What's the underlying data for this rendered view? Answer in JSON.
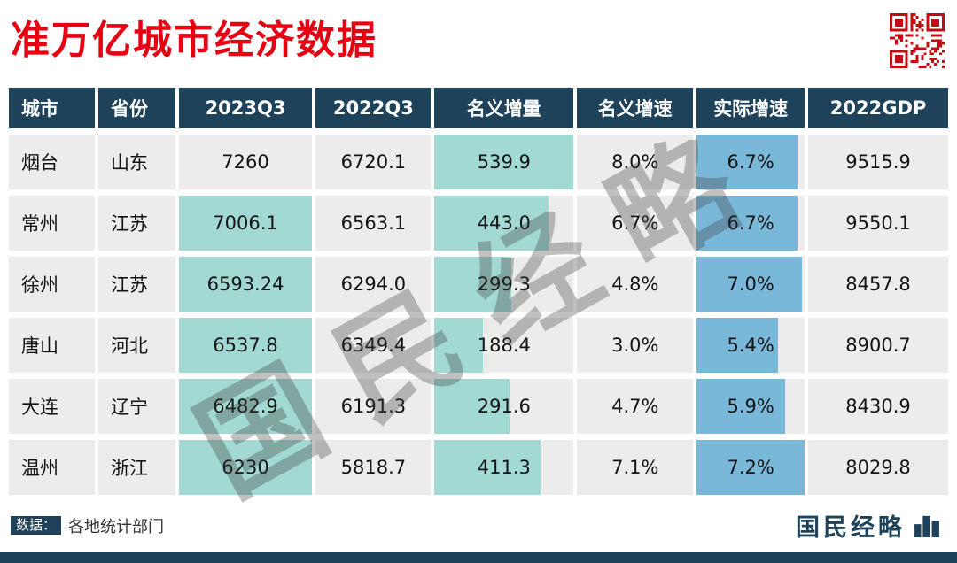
{
  "title": "准万亿城市经济数据",
  "watermark": "国民经略",
  "colors": {
    "red": "#e60012",
    "navy": "#1e4259",
    "teal": "#a2d9d3",
    "blue": "#7ab8da",
    "row_bg": "#ececec"
  },
  "table": {
    "columns": [
      "城市",
      "省份",
      "2023Q3",
      "2022Q3",
      "名义增量",
      "名义增速",
      "实际增速",
      "2022GDP"
    ],
    "rows": [
      {
        "city": "烟台",
        "province": "山东",
        "q3_2023": "7260",
        "q3_2023_highlight": false,
        "q3_2022": "6720.1",
        "increment": "539.9",
        "nominal_growth": "8.0%",
        "real_growth": "6.7%",
        "gdp_2022": "9515.9"
      },
      {
        "city": "常州",
        "province": "江苏",
        "q3_2023": "7006.1",
        "q3_2023_highlight": true,
        "q3_2022": "6563.1",
        "increment": "443.0",
        "nominal_growth": "6.7%",
        "real_growth": "6.7%",
        "gdp_2022": "9550.1"
      },
      {
        "city": "徐州",
        "province": "江苏",
        "q3_2023": "6593.24",
        "q3_2023_highlight": true,
        "q3_2022": "6294.0",
        "increment": "299.3",
        "nominal_growth": "4.8%",
        "real_growth": "7.0%",
        "gdp_2022": "8457.8"
      },
      {
        "city": "唐山",
        "province": "河北",
        "q3_2023": "6537.8",
        "q3_2023_highlight": true,
        "q3_2022": "6349.4",
        "increment": "188.4",
        "nominal_growth": "3.0%",
        "real_growth": "5.4%",
        "gdp_2022": "8900.7"
      },
      {
        "city": "大连",
        "province": "辽宁",
        "q3_2023": "6482.9",
        "q3_2023_highlight": true,
        "q3_2022": "6191.3",
        "increment": "291.6",
        "nominal_growth": "4.7%",
        "real_growth": "5.9%",
        "gdp_2022": "8430.9"
      },
      {
        "city": "温州",
        "province": "浙江",
        "q3_2023": "6230",
        "q3_2023_highlight": true,
        "q3_2022": "5818.7",
        "increment": "411.3",
        "nominal_growth": "7.1%",
        "real_growth": "7.2%",
        "gdp_2022": "8029.8"
      }
    ]
  },
  "footer": {
    "source_label": "数据：",
    "source": "各地统计部门",
    "brand": "国民经略"
  },
  "chart_data": {
    "type": "table",
    "title": "准万亿城市经济数据",
    "columns": [
      "城市",
      "省份",
      "2023Q3",
      "2022Q3",
      "名义增量",
      "名义增速",
      "实际增速",
      "2022GDP"
    ],
    "rows": [
      [
        "烟台",
        "山东",
        7260,
        6720.1,
        539.9,
        "8.0%",
        "6.7%",
        9515.9
      ],
      [
        "常州",
        "江苏",
        7006.1,
        6563.1,
        443.0,
        "6.7%",
        "6.7%",
        9550.1
      ],
      [
        "徐州",
        "江苏",
        6593.24,
        6294.0,
        299.3,
        "4.8%",
        "7.0%",
        8457.8
      ],
      [
        "唐山",
        "河北",
        6537.8,
        6349.4,
        188.4,
        "3.0%",
        "5.4%",
        8900.7
      ],
      [
        "大连",
        "辽宁",
        6482.9,
        6191.3,
        291.6,
        "4.7%",
        "5.9%",
        8430.9
      ],
      [
        "温州",
        "浙江",
        6230,
        5818.7,
        411.3,
        "7.1%",
        "7.2%",
        8029.8
      ]
    ],
    "source": "数据：各地统计部门"
  }
}
